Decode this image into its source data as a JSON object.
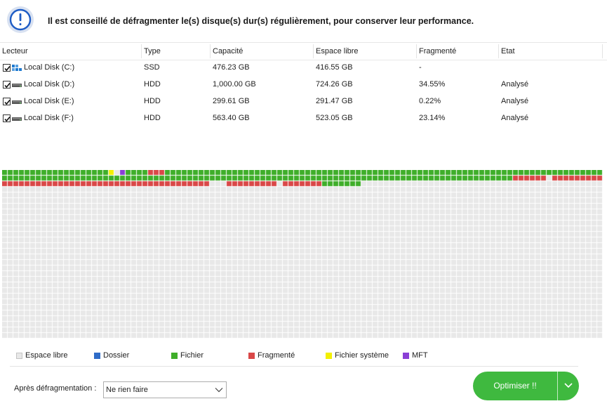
{
  "alert": {
    "icon": "info-exclamation-icon",
    "message": "Il est conseillé de défragmenter le(s) disque(s) dur(s) régulièrement, pour conserver leur performance."
  },
  "table": {
    "headers": [
      "Lecteur",
      "Type",
      "Capacité",
      "Espace libre",
      "Fragmenté",
      "Etat"
    ],
    "rows": [
      {
        "checked": true,
        "icon": "ssd-drive-icon",
        "drive": "Local Disk (C:)",
        "type": "SSD",
        "capacity": "476.23 GB",
        "free": "416.55 GB",
        "fragmented": "-",
        "state": ""
      },
      {
        "checked": true,
        "icon": "hdd-drive-icon",
        "drive": "Local Disk (D:)",
        "type": "HDD",
        "capacity": "1,000.00 GB",
        "free": "724.26 GB",
        "fragmented": "34.55%",
        "state": "Analysé"
      },
      {
        "checked": true,
        "icon": "hdd-drive-icon",
        "drive": "Local Disk (E:)",
        "type": "HDD",
        "capacity": "299.61 GB",
        "free": "291.47 GB",
        "fragmented": "0.22%",
        "state": "Analysé"
      },
      {
        "checked": true,
        "icon": "hdd-drive-icon",
        "drive": "Local Disk (F:)",
        "type": "HDD",
        "capacity": "563.40 GB",
        "free": "523.05 GB",
        "fragmented": "23.14%",
        "state": "Analysé"
      }
    ]
  },
  "legend": {
    "items": [
      {
        "label": "Espace libre",
        "color": "#e8e8e8"
      },
      {
        "label": "Dossier",
        "color": "#2f6cc8"
      },
      {
        "label": "Fichier",
        "color": "#3fae2a"
      },
      {
        "label": "Fragmenté",
        "color": "#d94848"
      },
      {
        "label": "Fichier système",
        "color": "#f3f000"
      },
      {
        "label": "MFT",
        "color": "#8a3fd6"
      }
    ]
  },
  "footer": {
    "after_label": "Après défragmentation :",
    "after_value": "Ne rien faire",
    "optimize_label": "Optimiser !!"
  },
  "colors": {
    "accent": "#3fb93f",
    "free": "#e8e8e8",
    "file": "#3fae2a",
    "fragmented": "#d94848",
    "system": "#f3f000",
    "mft": "#8a3fd6"
  }
}
